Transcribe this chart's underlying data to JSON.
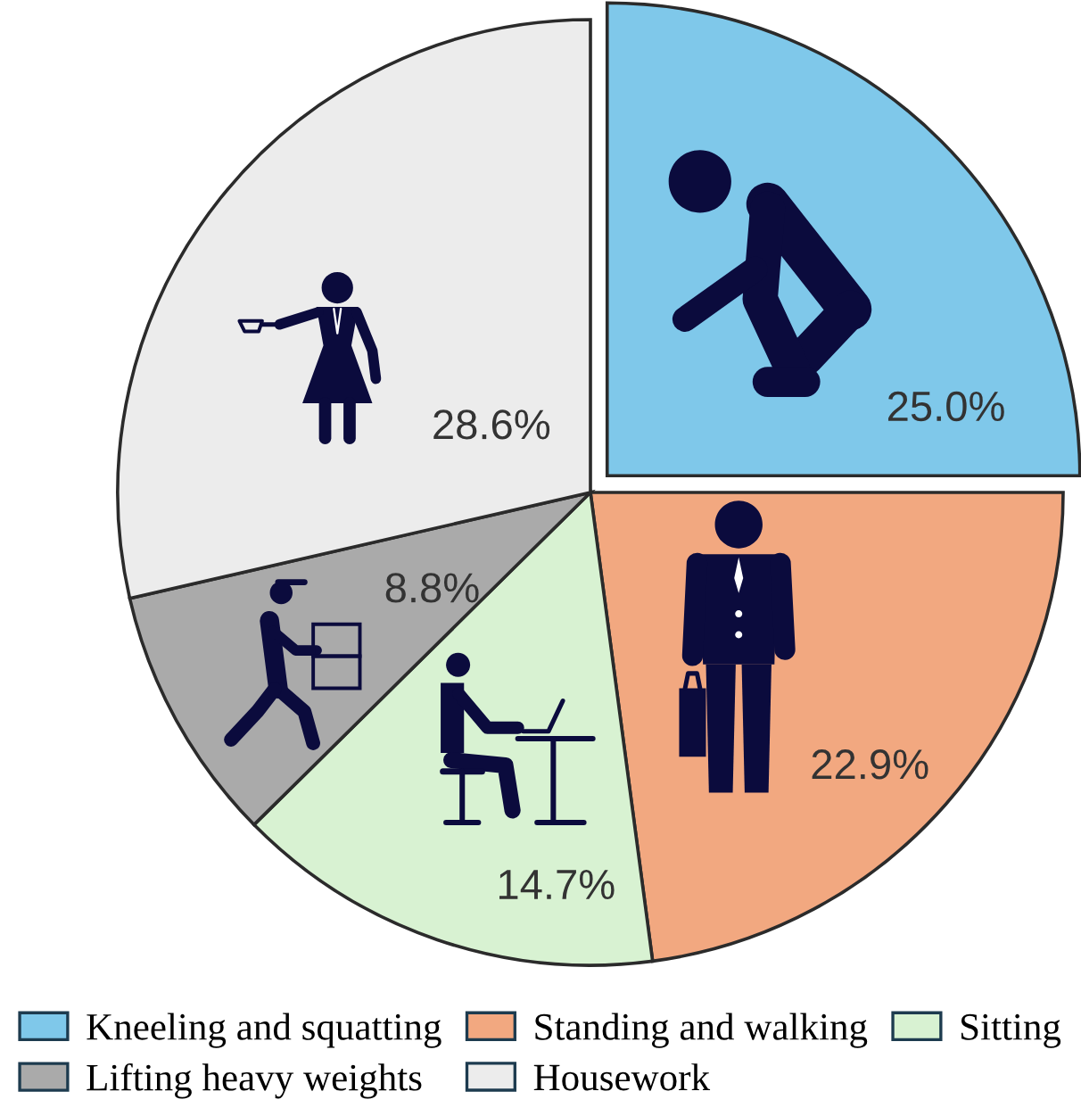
{
  "chart_data": {
    "type": "pie",
    "categories": [
      "Kneeling and squatting",
      "Standing and walking",
      "Sitting",
      "Lifting heavy weights",
      "Housework"
    ],
    "values": [
      25.0,
      22.9,
      14.7,
      8.8,
      28.6
    ],
    "colors": [
      "#7fc8ea",
      "#f2a880",
      "#d8f2d2",
      "#aaaaaa",
      "#ececec"
    ],
    "value_labels": [
      "25.0%",
      "22.9%",
      "14.7%",
      "8.8%",
      "28.6%"
    ],
    "legend": "bottom"
  }
}
